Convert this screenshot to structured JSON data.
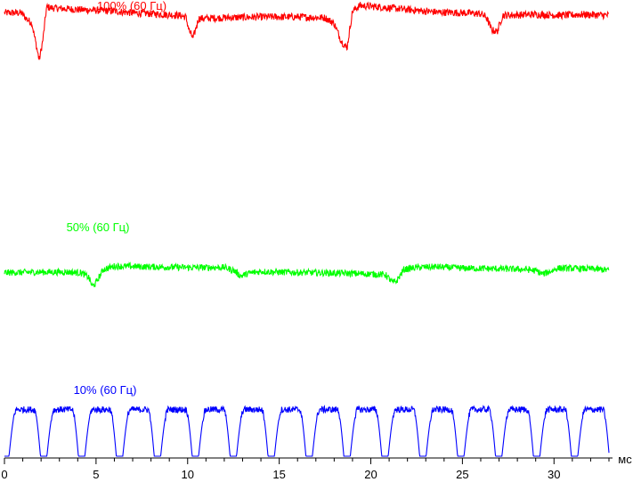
{
  "chart_data": {
    "type": "line",
    "xlabel": "мс",
    "xlim": [
      0,
      33
    ],
    "x_ticks": [
      "0",
      "5",
      "10",
      "15",
      "20",
      "25",
      "30"
    ],
    "grid": false,
    "legend": "none",
    "series": [
      {
        "name": "100% (60 Гц)",
        "color": "#ff0000",
        "points": [
          [
            0.0,
            0.93
          ],
          [
            0.9,
            0.93
          ],
          [
            1.2,
            0.86
          ],
          [
            1.5,
            0.8
          ],
          [
            1.9,
            0.35
          ],
          [
            2.1,
            0.6
          ],
          [
            2.3,
            1.0
          ],
          [
            2.6,
            0.99
          ],
          [
            4.0,
            0.97
          ],
          [
            6.0,
            0.95
          ],
          [
            7.0,
            0.93
          ],
          [
            8.0,
            0.92
          ],
          [
            9.5,
            0.9
          ],
          [
            9.9,
            0.88
          ],
          [
            10.1,
            0.7
          ],
          [
            10.3,
            0.62
          ],
          [
            10.6,
            0.86
          ],
          [
            12.0,
            0.87
          ],
          [
            14.0,
            0.88
          ],
          [
            16.0,
            0.88
          ],
          [
            17.5,
            0.87
          ],
          [
            18.0,
            0.8
          ],
          [
            18.4,
            0.58
          ],
          [
            18.7,
            0.5
          ],
          [
            19.0,
            0.95
          ],
          [
            19.4,
            1.02
          ],
          [
            20.5,
            1.0
          ],
          [
            21.5,
            0.98
          ],
          [
            22.5,
            0.96
          ],
          [
            23.5,
            0.94
          ],
          [
            25.0,
            0.93
          ],
          [
            26.0,
            0.92
          ],
          [
            26.3,
            0.88
          ],
          [
            26.6,
            0.72
          ],
          [
            26.9,
            0.7
          ],
          [
            27.2,
            0.9
          ],
          [
            29.0,
            0.91
          ],
          [
            30.5,
            0.9
          ],
          [
            31.5,
            0.91
          ],
          [
            33.0,
            0.9
          ]
        ]
      },
      {
        "name": "50% (60 Гц)",
        "color": "#00ff00",
        "points": [
          [
            0.0,
            0.45
          ],
          [
            2.0,
            0.46
          ],
          [
            3.5,
            0.46
          ],
          [
            4.2,
            0.45
          ],
          [
            4.6,
            0.38
          ],
          [
            4.8,
            0.24
          ],
          [
            5.0,
            0.3
          ],
          [
            5.4,
            0.5
          ],
          [
            6.0,
            0.55
          ],
          [
            8.0,
            0.54
          ],
          [
            10.0,
            0.53
          ],
          [
            12.0,
            0.53
          ],
          [
            12.5,
            0.49
          ],
          [
            12.9,
            0.4
          ],
          [
            13.3,
            0.44
          ],
          [
            14.0,
            0.47
          ],
          [
            15.0,
            0.46
          ],
          [
            17.0,
            0.45
          ],
          [
            19.0,
            0.44
          ],
          [
            20.0,
            0.43
          ],
          [
            20.8,
            0.42
          ],
          [
            21.2,
            0.3
          ],
          [
            21.4,
            0.32
          ],
          [
            21.8,
            0.5
          ],
          [
            22.5,
            0.53
          ],
          [
            23.5,
            0.54
          ],
          [
            25.0,
            0.52
          ],
          [
            27.0,
            0.51
          ],
          [
            28.5,
            0.5
          ],
          [
            29.0,
            0.48
          ],
          [
            29.4,
            0.43
          ],
          [
            29.8,
            0.47
          ],
          [
            30.2,
            0.52
          ],
          [
            32.0,
            0.51
          ],
          [
            33.0,
            0.49
          ]
        ]
      },
      {
        "name": "10% (60 Гц)",
        "color": "#0000ff",
        "period_ms": 2.07,
        "high_level": 0.86,
        "low_level": 0.0,
        "duration_ms": 33.0
      }
    ]
  }
}
